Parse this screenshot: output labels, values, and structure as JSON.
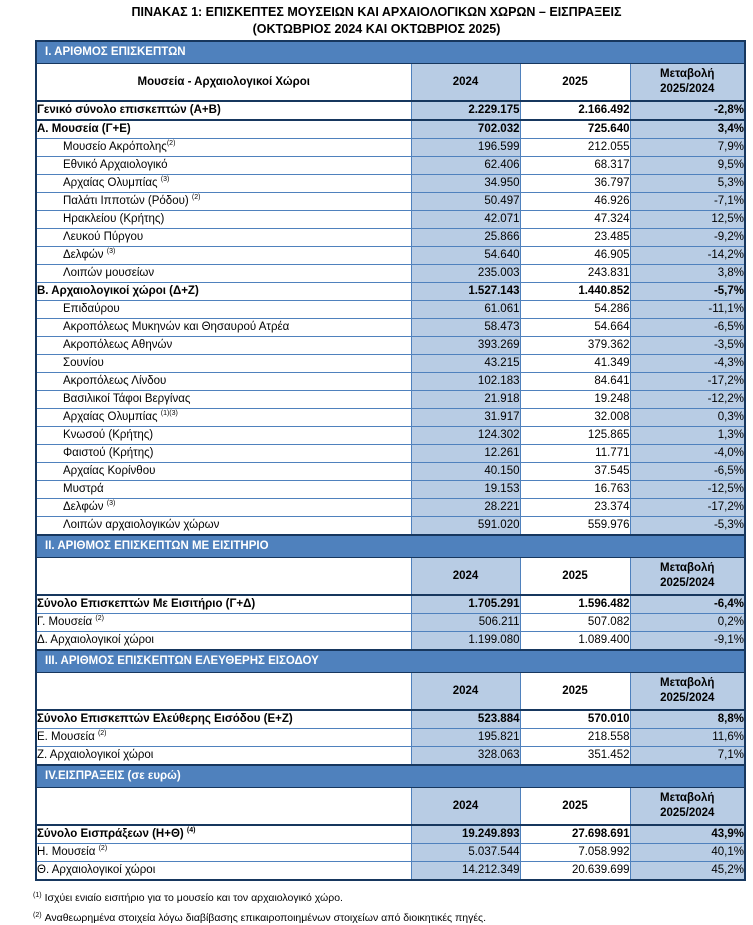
{
  "title": {
    "line1": "ΠΙΝΑΚΑΣ 1: ΕΠΙΣΚΕΠΤΕΣ ΜΟΥΣΕΙΩΝ ΚΑΙ ΑΡΧΑΙΟΛΟΓΙΚΩΝ ΧΩΡΩΝ – ΕΙΣΠΡΑΞΕΙΣ",
    "line2": "(ΟΚΤΩΒΡΙΟΣ 2024 ΚΑΙ ΟΚΤΩΒΡΙΟΣ 2025)"
  },
  "colors": {
    "band_blue": "#4f81bd",
    "light_blue_fill": "#b8cce4",
    "frame_navy": "#17375e",
    "band_text": "#ffffff"
  },
  "table": {
    "columns": {
      "name_header": "Μουσεία - Αρχαιολογικοί Χώροι",
      "col_2024": "2024",
      "col_2025": "2025",
      "change_line1": "Μεταβολή",
      "change_line2": "2025/2024"
    },
    "sections": [
      {
        "band": "Ι. ΑΡΙΘΜΟΣ ΕΠΙΣΚΕΠΤΩΝ",
        "name_header": "Μουσεία - Αρχαιολογικοί Χώροι",
        "rows": [
          {
            "label": "Γενικό σύνολο επισκεπτών (Α+Β)",
            "sup": "",
            "v2024": "2.229.175",
            "v2025": "2.166.492",
            "change": "-2,8%",
            "bold": true,
            "indent": false,
            "sep": true
          },
          {
            "label": "Α. Μουσεία (Γ+Ε)",
            "sup": "",
            "v2024": "702.032",
            "v2025": "725.640",
            "change": "3,4%",
            "bold": true,
            "indent": false,
            "sep": false
          },
          {
            "label": "Μουσείο Ακρόπολης",
            "sup": "(2)",
            "v2024": "196.599",
            "v2025": "212.055",
            "change": "7,9%",
            "bold": false,
            "indent": true,
            "sep": false
          },
          {
            "label": "Εθνικό Αρχαιολογικό",
            "sup": "",
            "v2024": "62.406",
            "v2025": "68.317",
            "change": "9,5%",
            "bold": false,
            "indent": true,
            "sep": false
          },
          {
            "label": "Αρχαίας Ολυμπίας ",
            "sup": "(3)",
            "v2024": "34.950",
            "v2025": "36.797",
            "change": "5,3%",
            "bold": false,
            "indent": true,
            "sep": false
          },
          {
            "label": "Παλάτι Ιπποτών (Ρόδου) ",
            "sup": "(2)",
            "v2024": "50.497",
            "v2025": "46.926",
            "change": "-7,1%",
            "bold": false,
            "indent": true,
            "sep": false
          },
          {
            "label": "Ηρακλείου (Κρήτης)",
            "sup": "",
            "v2024": "42.071",
            "v2025": "47.324",
            "change": "12,5%",
            "bold": false,
            "indent": true,
            "sep": false
          },
          {
            "label": "Λευκού Πύργου",
            "sup": "",
            "v2024": "25.866",
            "v2025": "23.485",
            "change": "-9,2%",
            "bold": false,
            "indent": true,
            "sep": false
          },
          {
            "label": "Δελφών ",
            "sup": "(3)",
            "v2024": "54.640",
            "v2025": "46.905",
            "change": "-14,2%",
            "bold": false,
            "indent": true,
            "sep": false
          },
          {
            "label": "Λοιπών μουσείων",
            "sup": "",
            "v2024": "235.003",
            "v2025": "243.831",
            "change": "3,8%",
            "bold": false,
            "indent": true,
            "sep": false
          },
          {
            "label": "Β. Αρχαιολογικοί χώροι (Δ+Ζ)",
            "sup": "",
            "v2024": "1.527.143",
            "v2025": "1.440.852",
            "change": "-5,7%",
            "bold": true,
            "indent": false,
            "sep": false
          },
          {
            "label": "Επιδαύρου",
            "sup": "",
            "v2024": "61.061",
            "v2025": "54.286",
            "change": "-11,1%",
            "bold": false,
            "indent": true,
            "sep": false
          },
          {
            "label": "Ακροπόλεως Μυκηνών και Θησαυρού Ατρέα",
            "sup": "",
            "v2024": "58.473",
            "v2025": "54.664",
            "change": "-6,5%",
            "bold": false,
            "indent": true,
            "sep": false
          },
          {
            "label": "Ακροπόλεως Αθηνών",
            "sup": "",
            "v2024": "393.269",
            "v2025": "379.362",
            "change": "-3,5%",
            "bold": false,
            "indent": true,
            "sep": false
          },
          {
            "label": "Σουνίου",
            "sup": "",
            "v2024": "43.215",
            "v2025": "41.349",
            "change": "-4,3%",
            "bold": false,
            "indent": true,
            "sep": false
          },
          {
            "label": "Ακροπόλεως Λίνδου",
            "sup": "",
            "v2024": "102.183",
            "v2025": "84.641",
            "change": "-17,2%",
            "bold": false,
            "indent": true,
            "sep": false
          },
          {
            "label": "Βασιλικοί Τάφοι Βεργίνας",
            "sup": "",
            "v2024": "21.918",
            "v2025": "19.248",
            "change": "-12,2%",
            "bold": false,
            "indent": true,
            "sep": false
          },
          {
            "label": "Αρχαίας Ολυμπίας ",
            "sup": "(1)(3)",
            "v2024": "31.917",
            "v2025": "32.008",
            "change": "0,3%",
            "bold": false,
            "indent": true,
            "sep": false
          },
          {
            "label": "Κνωσού (Κρήτης)",
            "sup": "",
            "v2024": "124.302",
            "v2025": "125.865",
            "change": "1,3%",
            "bold": false,
            "indent": true,
            "sep": false
          },
          {
            "label": "Φαιστού (Κρήτης)",
            "sup": "",
            "v2024": "12.261",
            "v2025": "11.771",
            "change": "-4,0%",
            "bold": false,
            "indent": true,
            "sep": false
          },
          {
            "label": "Αρχαίας Κορίνθου",
            "sup": "",
            "v2024": "40.150",
            "v2025": "37.545",
            "change": "-6,5%",
            "bold": false,
            "indent": true,
            "sep": false
          },
          {
            "label": "Μυστρά",
            "sup": "",
            "v2024": "19.153",
            "v2025": "16.763",
            "change": "-12,5%",
            "bold": false,
            "indent": true,
            "sep": false
          },
          {
            "label": "Δελφών ",
            "sup": "(3)",
            "v2024": "28.221",
            "v2025": "23.374",
            "change": "-17,2%",
            "bold": false,
            "indent": true,
            "sep": false
          },
          {
            "label": "Λοιπών αρχαιολογικών χώρων",
            "sup": "",
            "v2024": "591.020",
            "v2025": "559.976",
            "change": "-5,3%",
            "bold": false,
            "indent": true,
            "sep": false
          }
        ]
      },
      {
        "band": "ΙΙ. ΑΡΙΘΜΟΣ ΕΠΙΣΚΕΠΤΩΝ ΜΕ ΕΙΣΙΤΗΡΙΟ",
        "name_header": "",
        "rows": [
          {
            "label": "Σύνολο Επισκεπτών Με Εισιτήριο (Γ+Δ)",
            "sup": "",
            "v2024": "1.705.291",
            "v2025": "1.596.482",
            "change": "-6,4%",
            "bold": true,
            "indent": false,
            "sep": false
          },
          {
            "label": "Γ. Μουσεία ",
            "sup": "(2)",
            "v2024": "506.211",
            "v2025": "507.082",
            "change": "0,2%",
            "bold": false,
            "indent": false,
            "sep": false
          },
          {
            "label": "Δ. Αρχαιολογικοί χώροι",
            "sup": "",
            "v2024": "1.199.080",
            "v2025": "1.089.400",
            "change": "-9,1%",
            "bold": false,
            "indent": false,
            "sep": false
          }
        ]
      },
      {
        "band": "ΙΙΙ. ΑΡΙΘΜΟΣ ΕΠΙΣΚΕΠΤΩΝ ΕΛΕΥΘΕΡΗΣ ΕΙΣΟΔΟΥ",
        "name_header": "",
        "rows": [
          {
            "label": "Σύνολο Επισκεπτών Ελεύθερης Εισόδου (Ε+Ζ)",
            "sup": "",
            "v2024": "523.884",
            "v2025": "570.010",
            "change": "8,8%",
            "bold": true,
            "indent": false,
            "sep": false
          },
          {
            "label": "Ε. Μουσεία ",
            "sup": "(2)",
            "v2024": "195.821",
            "v2025": "218.558",
            "change": "11,6%",
            "bold": false,
            "indent": false,
            "sep": false
          },
          {
            "label": "Ζ. Αρχαιολογικοί χώροι",
            "sup": "",
            "v2024": "328.063",
            "v2025": "351.452",
            "change": "7,1%",
            "bold": false,
            "indent": false,
            "sep": false
          }
        ]
      },
      {
        "band": "IV.ΕΙΣΠΡΑΞΕΙΣ (σε ευρώ)",
        "name_header": "",
        "rows": [
          {
            "label": "Σύνολο Εισπράξεων (Η+Θ) ",
            "sup": "(4)",
            "v2024": "19.249.893",
            "v2025": "27.698.691",
            "change": "43,9%",
            "bold": true,
            "indent": false,
            "sep": false
          },
          {
            "label": "Η. Μουσεία ",
            "sup": "(2)",
            "v2024": "5.037.544",
            "v2025": "7.058.992",
            "change": "40,1%",
            "bold": false,
            "indent": false,
            "sep": false
          },
          {
            "label": "Θ. Αρχαιολογικοί χώροι",
            "sup": "",
            "v2024": "14.212.349",
            "v2025": "20.639.699",
            "change": "45,2%",
            "bold": false,
            "indent": false,
            "sep": false
          }
        ]
      }
    ]
  },
  "footnotes": [
    {
      "marker": "(1)",
      "text": "Ισχύει ενιαίο εισιτήριο για το μουσείο και τον αρχαιολογικό χώρο."
    },
    {
      "marker": "(2)",
      "text": "Αναθεωρημένα στοιχεία λόγω διαβίβασης επικαιροποιημένων στοιχείων από διοικητικές πηγές."
    }
  ]
}
